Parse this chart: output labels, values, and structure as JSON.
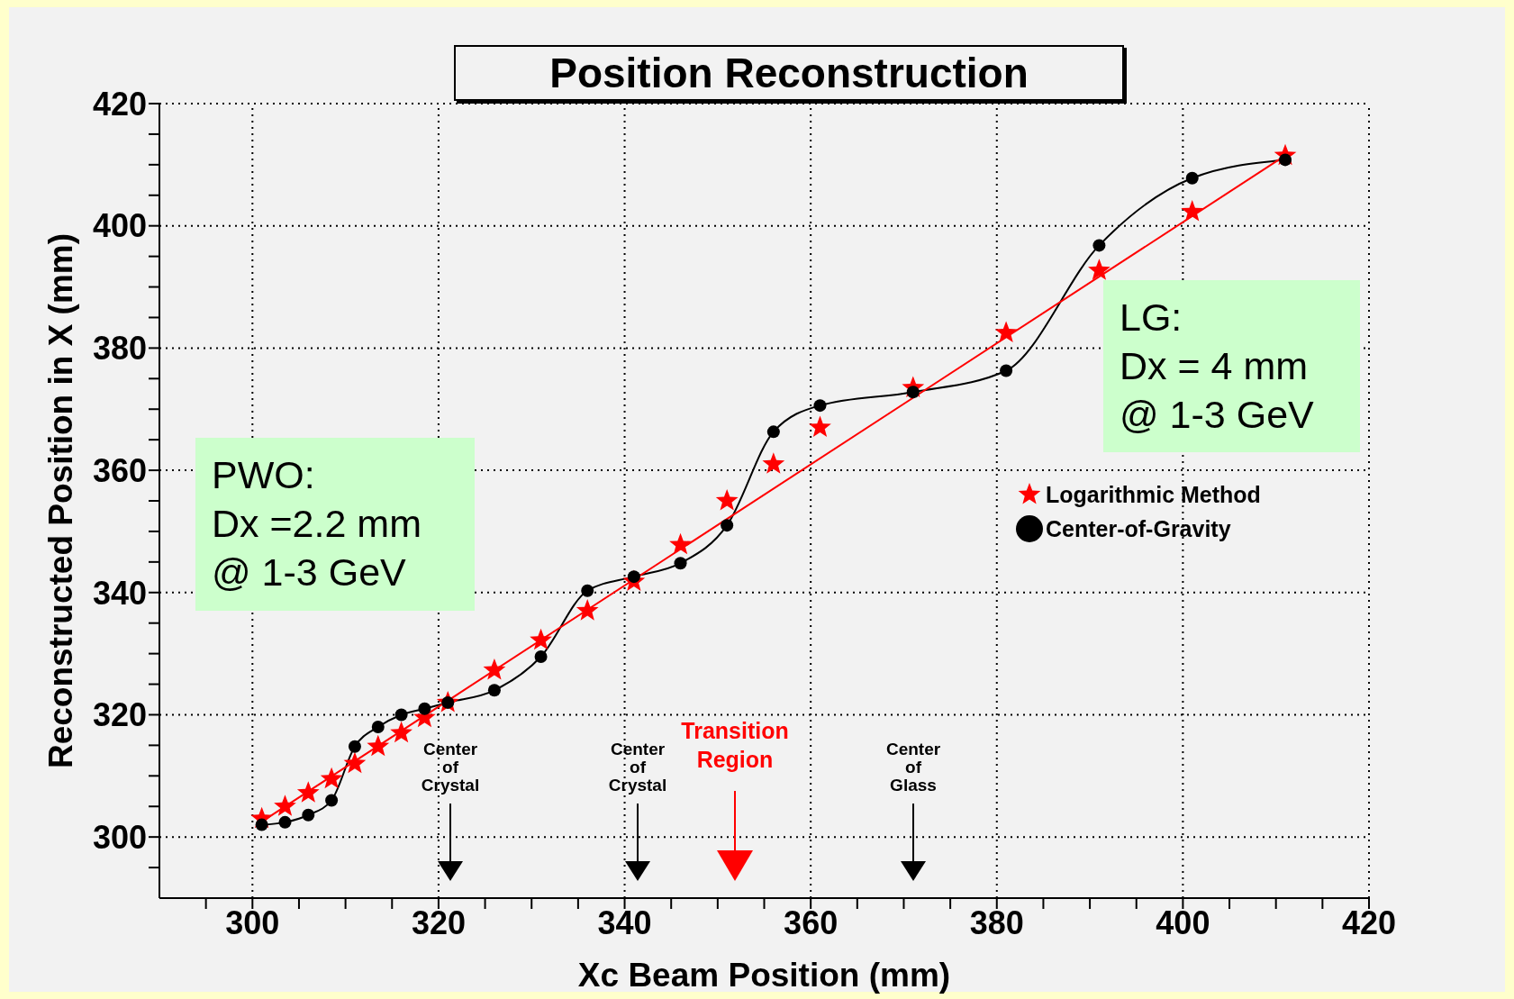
{
  "chart_data": {
    "type": "scatter",
    "title": "Position Reconstruction",
    "xlabel": "Xc Beam Position (mm)",
    "ylabel": "Reconstructed Position in X (mm)",
    "xlim": [
      290,
      420
    ],
    "xticks": [
      {
        "value": 295,
        "label": null
      },
      300,
      {
        "value": 305,
        "label": null
      },
      {
        "value": 310,
        "label": null
      },
      {
        "value": 315,
        "label": null
      },
      320,
      {
        "value": 325,
        "label": null
      },
      {
        "value": 330,
        "label": null
      },
      {
        "value": 335,
        "label": null
      },
      340,
      {
        "value": 345,
        "label": null
      },
      {
        "value": 350,
        "label": null
      },
      {
        "value": 355,
        "label": null
      },
      360,
      {
        "value": 365,
        "label": null
      },
      {
        "value": 370,
        "label": null
      },
      {
        "value": 375,
        "label": null
      },
      380,
      {
        "value": 385,
        "label": null
      },
      {
        "value": 390,
        "label": null
      },
      {
        "value": 395,
        "label": null
      },
      400,
      {
        "value": 405,
        "label": null
      },
      {
        "value": 410,
        "label": null
      },
      {
        "value": 415,
        "label": null
      },
      420
    ],
    "ylim": [
      290,
      420
    ],
    "yticks": [
      {
        "value": 295,
        "label": null
      },
      300,
      {
        "value": 305,
        "label": null
      },
      {
        "value": 310,
        "label": null
      },
      {
        "value": 315,
        "label": null
      },
      320,
      {
        "value": 325,
        "label": null
      },
      {
        "value": 330,
        "label": null
      },
      {
        "value": 335,
        "label": null
      },
      340,
      {
        "value": 345,
        "label": null
      },
      {
        "value": 350,
        "label": null
      },
      {
        "value": 355,
        "label": null
      },
      360,
      {
        "value": 365,
        "label": null
      },
      {
        "value": 370,
        "label": null
      },
      {
        "value": 375,
        "label": null
      },
      380,
      {
        "value": 385,
        "label": null
      },
      {
        "value": 390,
        "label": null
      },
      {
        "value": 395,
        "label": null
      },
      400,
      {
        "value": 405,
        "label": null
      },
      {
        "value": 410,
        "label": null
      },
      {
        "value": 415,
        "label": null
      },
      420
    ],
    "grid": true,
    "legend": "right",
    "series": [
      {
        "name": "Logarithmic Method",
        "marker": "star",
        "color": "#ff0000",
        "x": [
          301,
          303.5,
          306,
          308.5,
          311,
          313.5,
          316,
          318.5,
          321,
          326,
          331,
          336,
          341,
          346,
          351,
          356,
          361,
          371,
          381,
          391,
          401,
          411
        ],
        "values": [
          303,
          305,
          307.2,
          309.5,
          312,
          314.8,
          317,
          319.5,
          322,
          327.3,
          332.2,
          337,
          341.8,
          347.8,
          355,
          361,
          367,
          373.5,
          382.5,
          392.7,
          402.3,
          411.5
        ]
      },
      {
        "name": "Center-of-Gravity",
        "type": "line",
        "marker": "circle",
        "color": "#000000",
        "x": [
          301,
          303.5,
          306,
          308.5,
          311,
          313.5,
          316,
          318.5,
          321,
          326,
          331,
          336,
          341,
          346,
          351,
          356,
          361,
          371,
          381,
          391,
          401,
          411
        ],
        "values": [
          302,
          302.4,
          303.6,
          306,
          314.8,
          318,
          320,
          321,
          322,
          324,
          329.5,
          340.3,
          342.6,
          344.8,
          351,
          366.3,
          370.6,
          372.8,
          376.3,
          396.8,
          407.8,
          410.8
        ]
      },
      {
        "type": "line",
        "marker": "none",
        "color": "#ff0000",
        "x": [
          301,
          411
        ],
        "values": [
          302.5,
          411.5
        ]
      }
    ],
    "annotations": [
      "PWO:\nDx =2.2 mm\n@ 1-3 GeV",
      "LG:\nDx = 4 mm\n@ 1-3 GeV",
      "Center\nof\nCrystal",
      "Center\nof\nCrystal",
      "Transition\nRegion",
      "Center\nof\nGlass"
    ]
  }
}
